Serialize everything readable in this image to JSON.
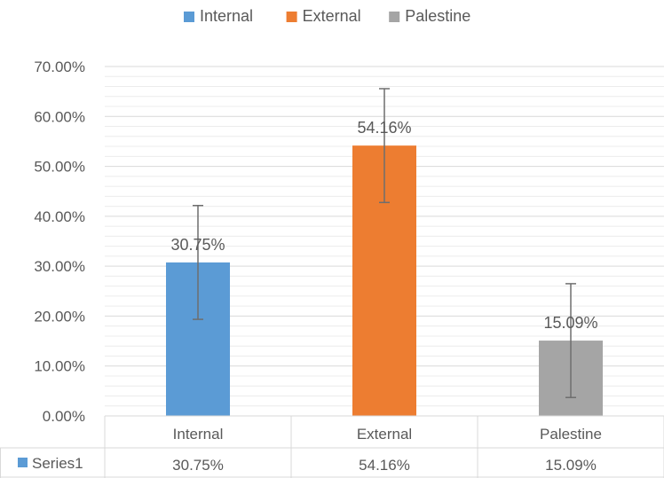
{
  "chart_data": {
    "type": "bar",
    "title": "",
    "xlabel": "",
    "ylabel": "",
    "categories": [
      "Internal",
      "External",
      "Palestine"
    ],
    "values": [
      30.75,
      54.16,
      15.09
    ],
    "value_labels": [
      "30.75%",
      "54.16%",
      "15.09%"
    ],
    "error_bars": {
      "minus": [
        11.4,
        11.4,
        11.4
      ],
      "plus": [
        11.4,
        11.4,
        11.4
      ]
    },
    "colors": [
      "#5b9bd5",
      "#ed7d31",
      "#a5a5a5"
    ],
    "ylim": [
      0,
      70
    ],
    "yticks": [
      0,
      10,
      20,
      30,
      40,
      50,
      60,
      70
    ],
    "ytick_labels": [
      "0.00%",
      "10.00%",
      "20.00%",
      "30.00%",
      "40.00%",
      "50.00%",
      "60.00%",
      "70.00%"
    ],
    "minor_grid": true,
    "legend": {
      "position": "top",
      "entries": [
        {
          "label": "Internal",
          "color": "#5b9bd5"
        },
        {
          "label": "External",
          "color": "#ed7d31"
        },
        {
          "label": "Palestine",
          "color": "#a5a5a5"
        }
      ]
    },
    "data_table": {
      "series_name": "Series1",
      "series_color": "#5b9bd5",
      "values": [
        "30.75%",
        "54.16%",
        "15.09%"
      ]
    }
  }
}
